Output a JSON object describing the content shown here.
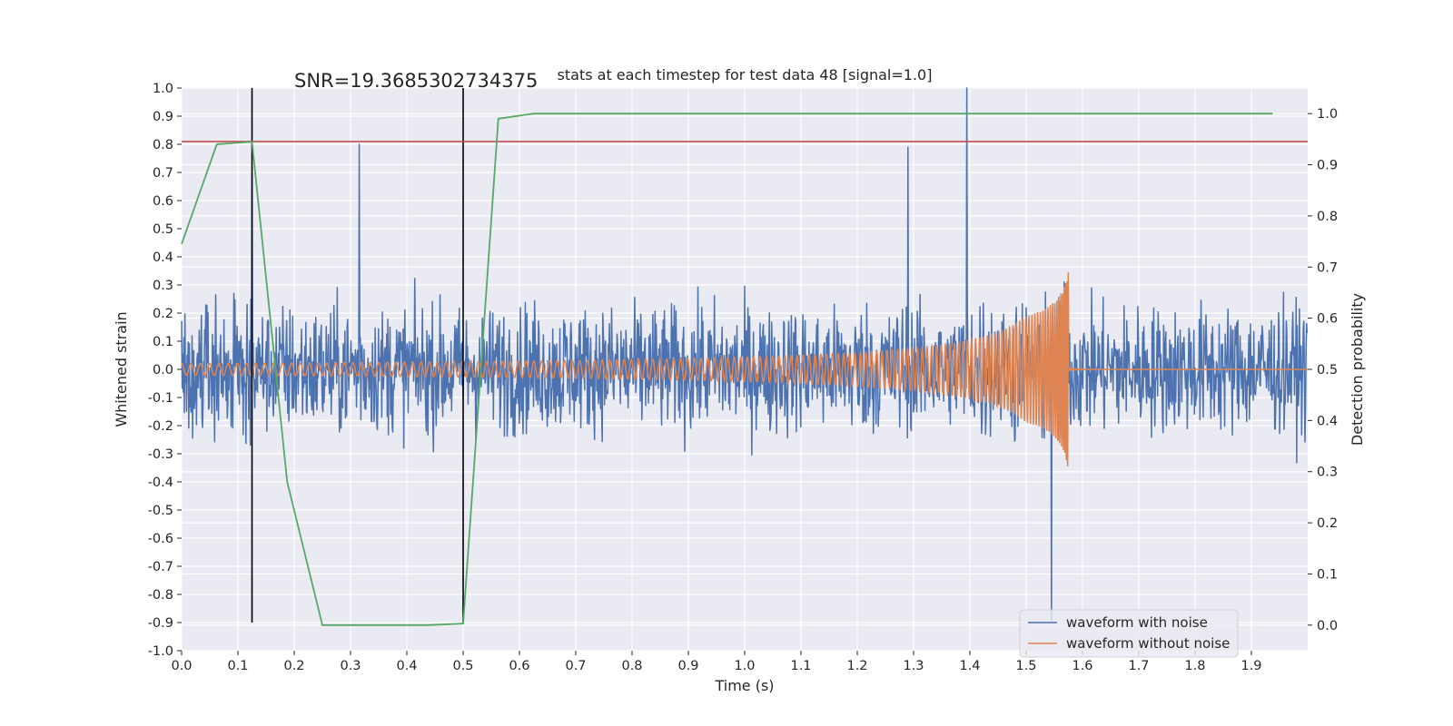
{
  "chart_data": {
    "type": "line",
    "title": "stats at each timestep for test data 48 [signal=1.0]",
    "xlabel": "Time (s)",
    "ylabel_left": "Whitened strain",
    "ylabel_right": "Detection probability",
    "xlim": [
      0.0,
      2.0
    ],
    "ylim_left": [
      -1.0,
      1.0
    ],
    "ylim_right": [
      -0.05,
      1.05
    ],
    "xticks": [
      "0.0",
      "0.1",
      "0.2",
      "0.3",
      "0.4",
      "0.5",
      "0.6",
      "0.7",
      "0.8",
      "0.9",
      "1.0",
      "1.1",
      "1.2",
      "1.3",
      "1.4",
      "1.5",
      "1.6",
      "1.7",
      "1.8",
      "1.9"
    ],
    "yticks_left": [
      "-1.0",
      "-0.9",
      "-0.8",
      "-0.7",
      "-0.6",
      "-0.5",
      "-0.4",
      "-0.3",
      "-0.2",
      "-0.1",
      "0.0",
      "0.1",
      "0.2",
      "0.3",
      "0.4",
      "0.5",
      "0.6",
      "0.7",
      "0.8",
      "0.9",
      "1.0"
    ],
    "yticks_right": [
      "0.0",
      "0.1",
      "0.2",
      "0.3",
      "0.4",
      "0.5",
      "0.6",
      "0.7",
      "0.8",
      "0.9",
      "1.0"
    ],
    "annotation": "SNR=19.3685302734375",
    "annotation_pos": {
      "x": 0.2,
      "y": 1.0
    },
    "grid": true,
    "legend": {
      "placement": "lower-right",
      "entries": [
        "waveform with noise",
        "waveform without noise"
      ]
    },
    "colors": {
      "noise": "#4c72b0",
      "clean": "#dd8452",
      "prob": "#55a868",
      "threshold": "#c44e52",
      "vline": "#000000",
      "background": "#eaeaf2"
    },
    "vlines": [
      {
        "x": 0.125,
        "y0": -0.9,
        "y1": 1.0
      },
      {
        "x": 0.5,
        "y0": -0.9,
        "y1": 1.0
      }
    ],
    "threshold_left_y": 0.81,
    "series": [
      {
        "name": "waveform with noise",
        "axis": "left",
        "generated": true,
        "sample_count": 2048,
        "amplitude_range": [
          -0.91,
          1.0
        ],
        "notable_peaks": [
          {
            "x": 0.125,
            "y": 0.7
          },
          {
            "x": 0.315,
            "y": 0.8
          },
          {
            "x": 1.29,
            "y": 0.79
          },
          {
            "x": 1.395,
            "y": 1.0
          },
          {
            "x": 1.545,
            "y": -0.9
          }
        ]
      },
      {
        "name": "waveform without noise",
        "axis": "left",
        "generated": true,
        "chirp": {
          "start_freq_hz": 60,
          "end_time_s": 1.575,
          "start_amplitude": 0.09,
          "peak_amplitude": 0.45
        }
      },
      {
        "name": "Detection probability",
        "axis": "right",
        "x": [
          0.0,
          0.0625,
          0.125,
          0.1875,
          0.25,
          0.3125,
          0.4375,
          0.5,
          0.5625,
          0.625,
          0.6875,
          0.75,
          0.8125,
          0.875,
          0.9375,
          1.0,
          1.0625,
          1.125,
          1.1875,
          1.25,
          1.3125,
          1.375,
          1.4375,
          1.5,
          1.5625,
          1.625,
          1.6875,
          1.75,
          1.8125,
          1.875,
          1.9375
        ],
        "values": [
          0.745,
          0.94,
          0.945,
          0.28,
          0.0,
          0.0,
          0.0,
          0.003,
          0.99,
          1.0,
          1.0,
          1.0,
          1.0,
          1.0,
          1.0,
          1.0,
          1.0,
          1.0,
          1.0,
          1.0,
          1.0,
          1.0,
          1.0,
          1.0,
          1.0,
          1.0,
          1.0,
          1.0,
          1.0,
          1.0,
          1.0
        ]
      }
    ]
  }
}
